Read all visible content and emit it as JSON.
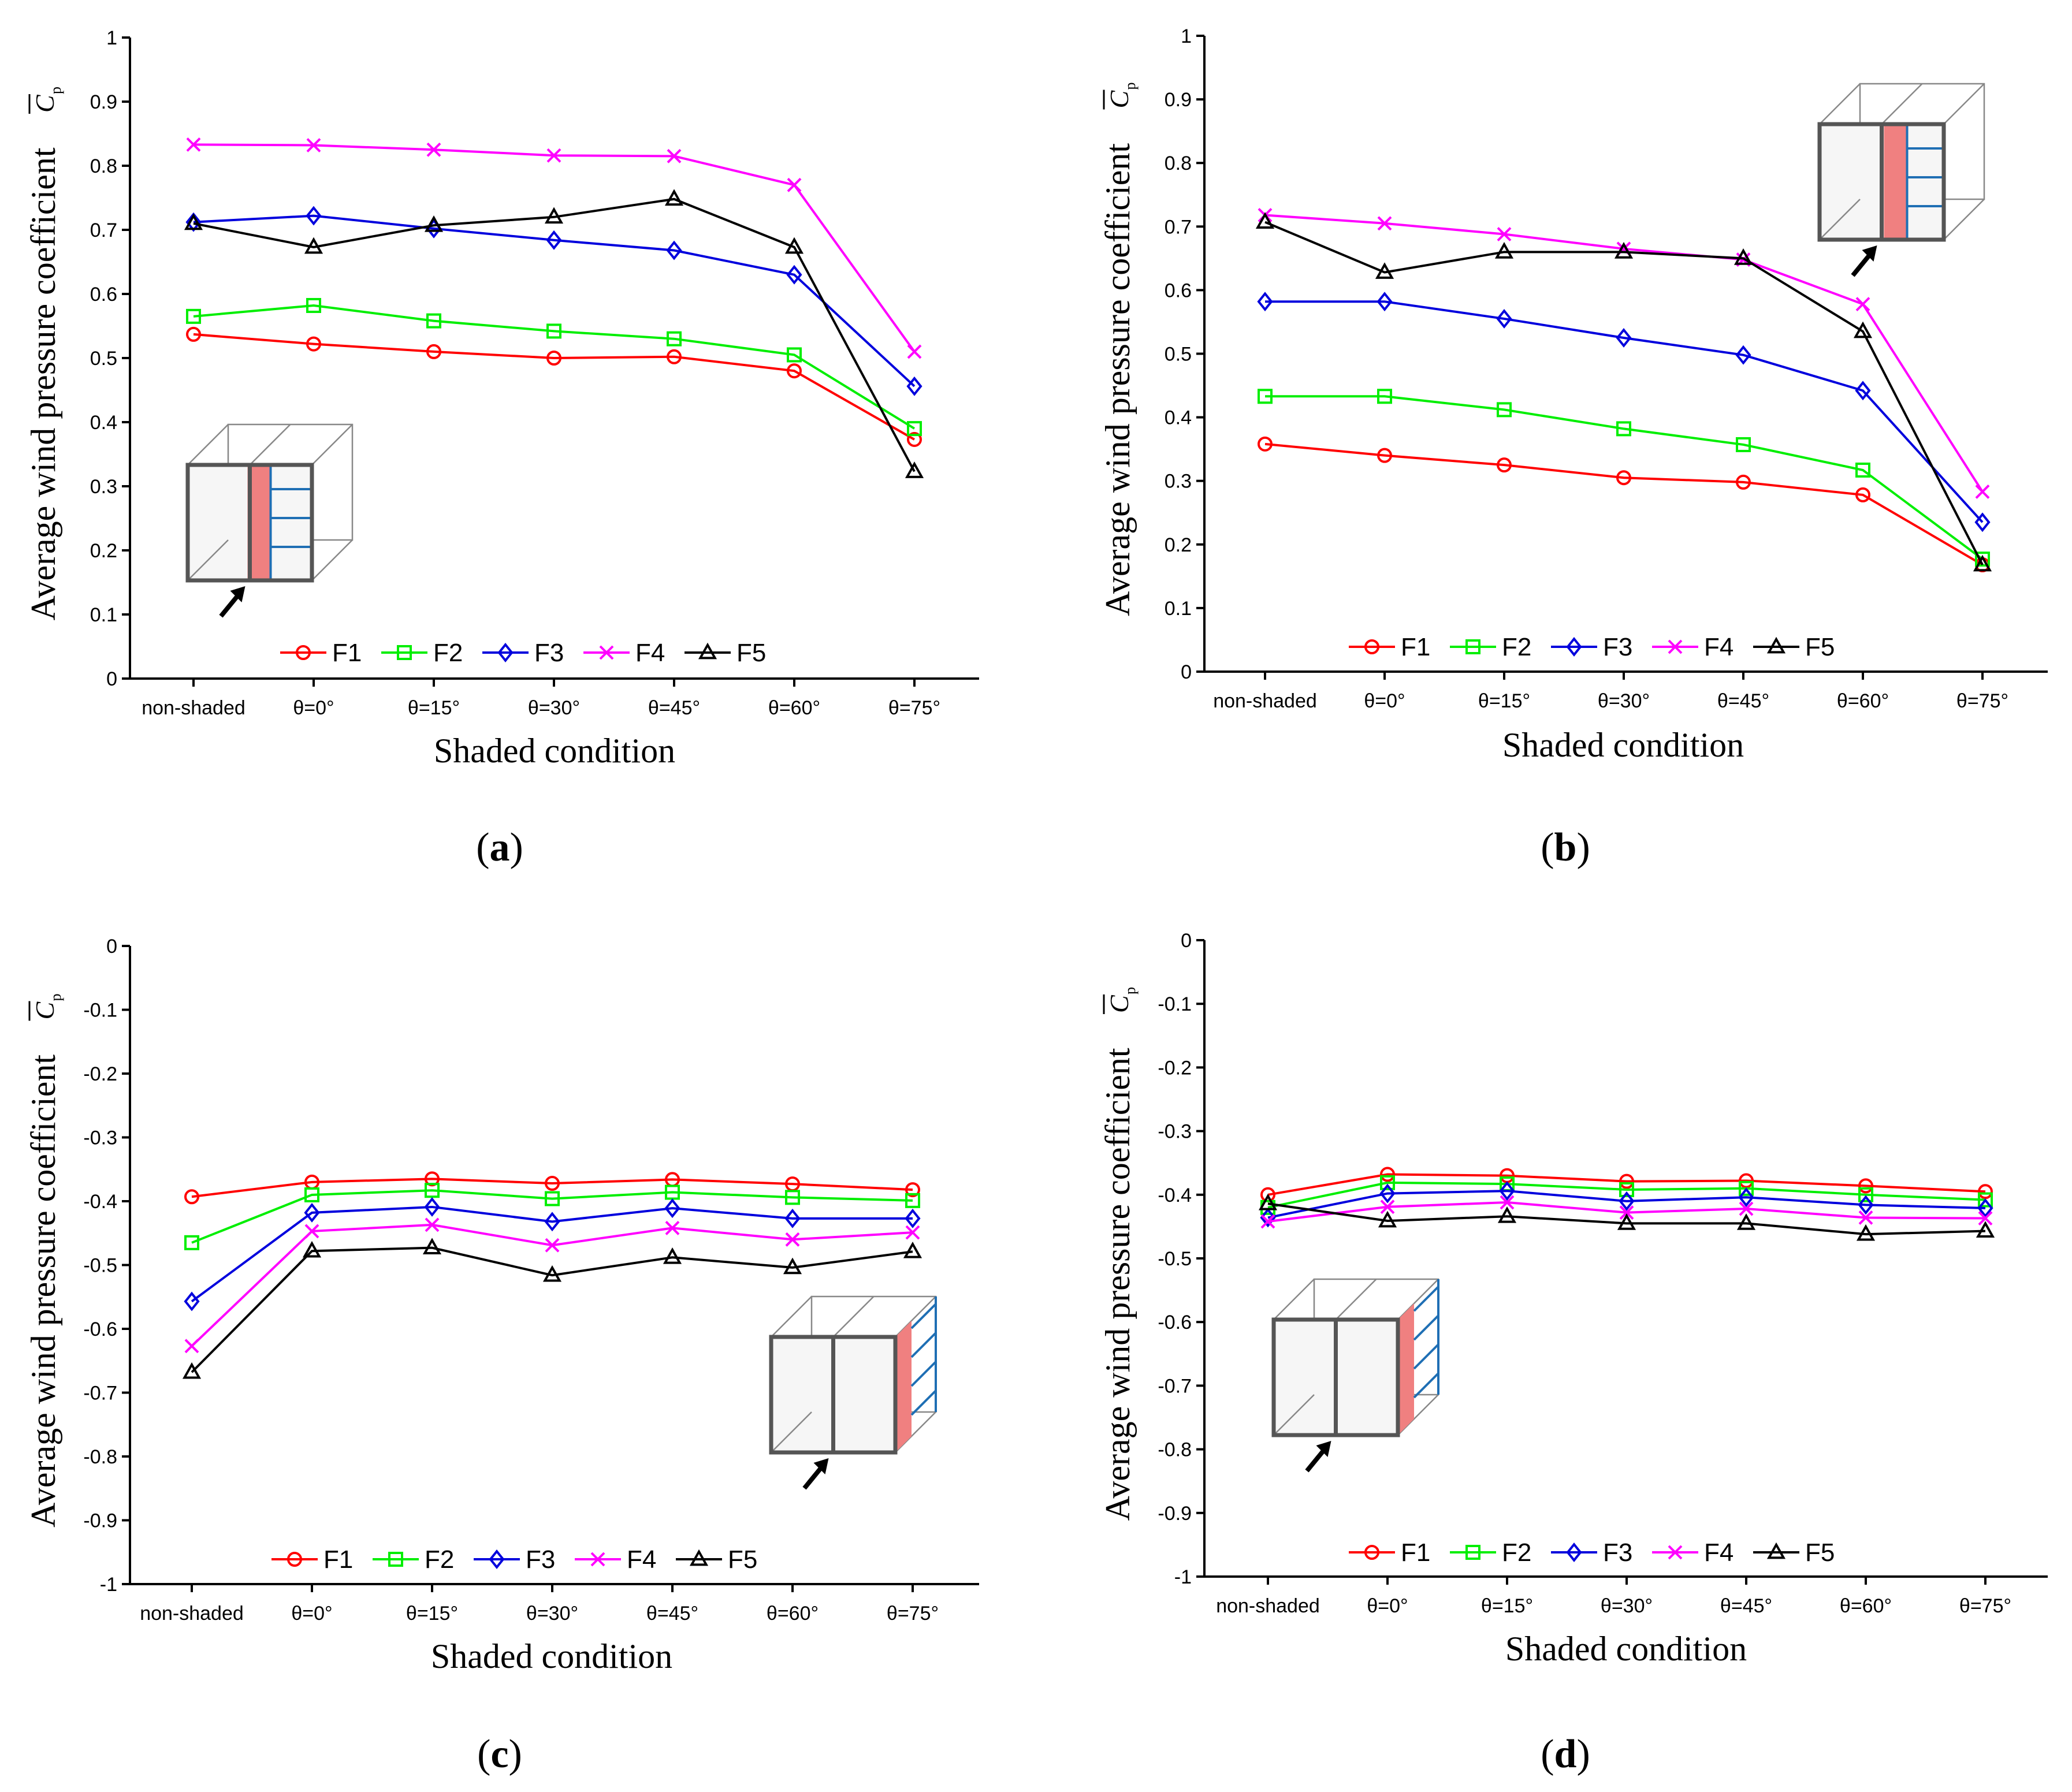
{
  "colors": {
    "F1": "#ff0000",
    "F2": "#00ee00",
    "F3": "#0000dd",
    "F4": "#ff00ff",
    "F5": "#000000",
    "shaded_face": "#f08080",
    "grid_lines": "#1f6fb4"
  },
  "chart_data": [
    {
      "panel": "a",
      "type": "line",
      "categories": [
        "non-shaded",
        "θ=0°",
        "θ=15°",
        "θ=30°",
        "θ=45°",
        "θ=60°",
        "θ=75°"
      ],
      "xlabel": "Shaded condition",
      "ylabel": "Average wind pressure coefficient",
      "ylabel_symbol": "C",
      "ylabel_sub": "p",
      "ylim": [
        0,
        1
      ],
      "yticks": [
        "0",
        "0.1",
        "0.2",
        "0.3",
        "0.4",
        "0.5",
        "0.6",
        "0.7",
        "0.8",
        "0.9",
        "1"
      ],
      "legend": "bottom",
      "grid": false,
      "inset": "left-bottom",
      "series": [
        {
          "name": "F1",
          "marker": "circle",
          "values": [
            0.537,
            0.522,
            0.51,
            0.5,
            0.502,
            0.48,
            0.373
          ]
        },
        {
          "name": "F2",
          "marker": "square",
          "values": [
            0.565,
            0.582,
            0.558,
            0.542,
            0.53,
            0.505,
            0.39
          ]
        },
        {
          "name": "F3",
          "marker": "diamond",
          "values": [
            0.712,
            0.722,
            0.702,
            0.684,
            0.668,
            0.63,
            0.456
          ]
        },
        {
          "name": "F4",
          "marker": "x",
          "values": [
            0.833,
            0.832,
            0.825,
            0.816,
            0.815,
            0.77,
            0.51
          ]
        },
        {
          "name": "F5",
          "marker": "triangle",
          "values": [
            0.71,
            0.673,
            0.707,
            0.72,
            0.748,
            0.673,
            0.323
          ]
        }
      ]
    },
    {
      "panel": "b",
      "type": "line",
      "categories": [
        "non-shaded",
        "θ=0°",
        "θ=15°",
        "θ=30°",
        "θ=45°",
        "θ=60°",
        "θ=75°"
      ],
      "xlabel": "Shaded condition",
      "ylabel": "Average wind pressure coefficient",
      "ylabel_symbol": "C",
      "ylabel_sub": "p",
      "ylim": [
        0,
        1
      ],
      "yticks": [
        "0",
        "0.1",
        "0.2",
        "0.3",
        "0.4",
        "0.5",
        "0.6",
        "0.7",
        "0.8",
        "0.9",
        "1"
      ],
      "legend": "bottom",
      "grid": false,
      "inset": "right-top",
      "series": [
        {
          "name": "F1",
          "marker": "circle",
          "values": [
            0.358,
            0.34,
            0.325,
            0.305,
            0.298,
            0.278,
            0.168
          ]
        },
        {
          "name": "F2",
          "marker": "square",
          "values": [
            0.433,
            0.433,
            0.412,
            0.382,
            0.357,
            0.317,
            0.177
          ]
        },
        {
          "name": "F3",
          "marker": "diamond",
          "values": [
            0.582,
            0.582,
            0.555,
            0.525,
            0.498,
            0.442,
            0.235
          ]
        },
        {
          "name": "F4",
          "marker": "x",
          "values": [
            0.718,
            0.705,
            0.688,
            0.665,
            0.648,
            0.578,
            0.283
          ]
        },
        {
          "name": "F5",
          "marker": "triangle",
          "values": [
            0.707,
            0.628,
            0.66,
            0.66,
            0.65,
            0.535,
            0.168
          ]
        }
      ]
    },
    {
      "panel": "c",
      "type": "line",
      "categories": [
        "non-shaded",
        "θ=0°",
        "θ=15°",
        "θ=30°",
        "θ=45°",
        "θ=60°",
        "θ=75°"
      ],
      "xlabel": "Shaded condition",
      "ylabel": "Average wind pressure coefficient",
      "ylabel_symbol": "C",
      "ylabel_sub": "p",
      "ylim": [
        -1,
        0
      ],
      "yticks": [
        "0",
        "-0.1",
        "-0.2",
        "-0.3",
        "-0.4",
        "-0.5",
        "-0.6",
        "-0.7",
        "-0.8",
        "-0.9",
        "-1"
      ],
      "legend": "bottom",
      "grid": false,
      "inset": "right-bottom",
      "series": [
        {
          "name": "F1",
          "marker": "circle",
          "values": [
            -0.393,
            -0.37,
            -0.365,
            -0.372,
            -0.366,
            -0.373,
            -0.382
          ]
        },
        {
          "name": "F2",
          "marker": "square",
          "values": [
            -0.465,
            -0.39,
            -0.383,
            -0.396,
            -0.386,
            -0.394,
            -0.399
          ]
        },
        {
          "name": "F3",
          "marker": "diamond",
          "values": [
            -0.557,
            -0.418,
            -0.409,
            -0.432,
            -0.411,
            -0.427,
            -0.427
          ]
        },
        {
          "name": "F4",
          "marker": "x",
          "values": [
            -0.627,
            -0.447,
            -0.437,
            -0.469,
            -0.442,
            -0.46,
            -0.449
          ]
        },
        {
          "name": "F5",
          "marker": "triangle",
          "values": [
            -0.668,
            -0.478,
            -0.473,
            -0.516,
            -0.488,
            -0.504,
            -0.479
          ]
        }
      ]
    },
    {
      "panel": "d",
      "type": "line",
      "categories": [
        "non-shaded",
        "θ=0°",
        "θ=15°",
        "θ=30°",
        "θ=45°",
        "θ=60°",
        "θ=75°"
      ],
      "xlabel": "Shaded condition",
      "ylabel": "Average wind pressure coefficient",
      "ylabel_symbol": "C",
      "ylabel_sub": "p",
      "ylim": [
        -1,
        0
      ],
      "yticks": [
        "0",
        "-0.1",
        "-0.2",
        "-0.3",
        "-0.4",
        "-0.5",
        "-0.6",
        "-0.7",
        "-0.8",
        "-0.9",
        "-1"
      ],
      "legend": "bottom",
      "grid": false,
      "inset": "left-bottom",
      "series": [
        {
          "name": "F1",
          "marker": "circle",
          "values": [
            -0.4,
            -0.368,
            -0.37,
            -0.379,
            -0.378,
            -0.386,
            -0.395
          ]
        },
        {
          "name": "F2",
          "marker": "square",
          "values": [
            -0.42,
            -0.381,
            -0.383,
            -0.392,
            -0.39,
            -0.4,
            -0.408
          ]
        },
        {
          "name": "F3",
          "marker": "diamond",
          "values": [
            -0.436,
            -0.398,
            -0.394,
            -0.41,
            -0.404,
            -0.416,
            -0.421
          ]
        },
        {
          "name": "F4",
          "marker": "x",
          "values": [
            -0.442,
            -0.419,
            -0.412,
            -0.428,
            -0.422,
            -0.436,
            -0.437
          ]
        },
        {
          "name": "F5",
          "marker": "triangle",
          "values": [
            -0.414,
            -0.441,
            -0.434,
            -0.445,
            -0.445,
            -0.462,
            -0.457
          ]
        }
      ]
    }
  ],
  "panel_labels": [
    "(a)",
    "(b)",
    "(c)",
    "(d)"
  ]
}
